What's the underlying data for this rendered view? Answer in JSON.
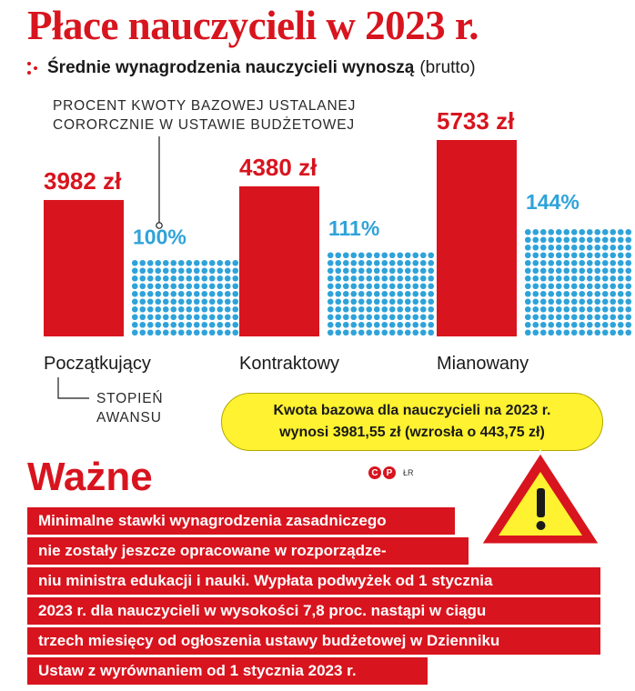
{
  "title": "Płace nauczycieli w 2023 r.",
  "subtitle": {
    "main": "Średnie wynagrodzenia nauczycieli wynoszą",
    "note": "(brutto)"
  },
  "note_top": "PROCENT KWOTY BAZOWEJ USTALANEJ CORORCZNIE W USTAWIE BUDŻETOWEJ",
  "note_bottom": "STOPIEŃ AWANSU",
  "colors": {
    "red": "#d8141e",
    "blue": "#2fa3d9",
    "yellow": "#fff230"
  },
  "chart_data": {
    "type": "bar",
    "categories": [
      "Początkujący",
      "Kontraktowy",
      "Mianowany"
    ],
    "series": [
      {
        "values": [
          3982,
          4380,
          5733
        ],
        "labels": [
          "3982 zł",
          "4380 zł",
          "5733 zł"
        ],
        "color": "#d8141e"
      },
      {
        "values": [
          100,
          111,
          144
        ],
        "labels": [
          "100%",
          "111%",
          "144%"
        ],
        "color": "#2fa3d9"
      }
    ]
  },
  "base_box": {
    "line1": "Kwota bazowa dla nauczycieli na 2023 r.",
    "line2": "wynosi 3981,55 zł (wzrosła o 443,75 zł)"
  },
  "important": {
    "heading": "Ważne",
    "lines": [
      "Minimalne stawki wynagrodzenia zasadniczego",
      "nie zostały jeszcze opracowane w rozporządze-",
      "niu ministra edukacji i nauki. Wypłata podwyżek od 1 stycznia",
      "2023 r. dla nauczycieli w wysokości 7,8 proc. nastąpi w ciągu",
      "trzech miesięcy od ogłoszenia ustawy budżetowej w Dzienniku",
      "Ustaw z wyrównaniem od 1 stycznia 2023 r."
    ]
  },
  "copyright": {
    "c": "C",
    "p": "P",
    "credit": "ŁR"
  }
}
